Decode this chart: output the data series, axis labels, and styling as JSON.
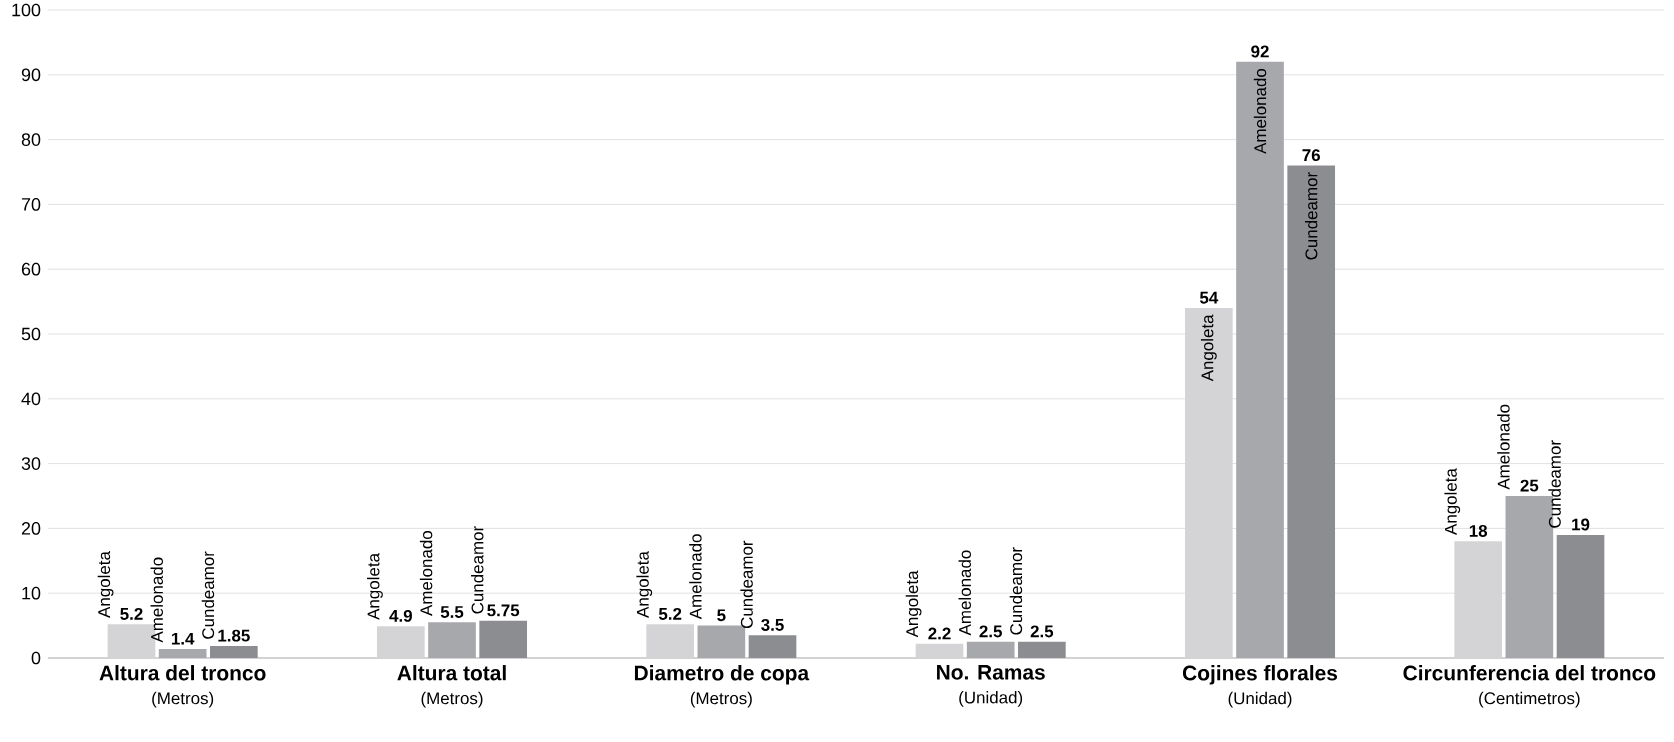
{
  "chart_data": {
    "type": "bar",
    "categories": [
      "Altura del tronco",
      "Altura total",
      "Diametro de copa",
      "No. Ramas",
      "Cojines florales",
      "Circunferencia del tronco"
    ],
    "annotations": [
      "(Metros)",
      "(Metros)",
      "(Metros)",
      "(Unidad)",
      "(Unidad)",
      "(Centimetros)"
    ],
    "series": [
      {
        "name": "Angoleta",
        "color": "#d4d4d6",
        "values": [
          5.2,
          4.9,
          5.2,
          2.2,
          54,
          18
        ]
      },
      {
        "name": "Amelonado",
        "color": "#a7a8ac",
        "values": [
          1.4,
          5.5,
          5,
          2.5,
          92,
          25
        ]
      },
      {
        "name": "Cundeamor",
        "color": "#8c8d91",
        "values": [
          1.85,
          5.75,
          3.5,
          2.5,
          76,
          19
        ]
      }
    ],
    "ylim": [
      0,
      100
    ],
    "yticks": [
      0,
      10,
      20,
      30,
      40,
      50,
      60,
      70,
      80,
      90,
      100
    ],
    "grid": "y",
    "data_labels": true
  }
}
